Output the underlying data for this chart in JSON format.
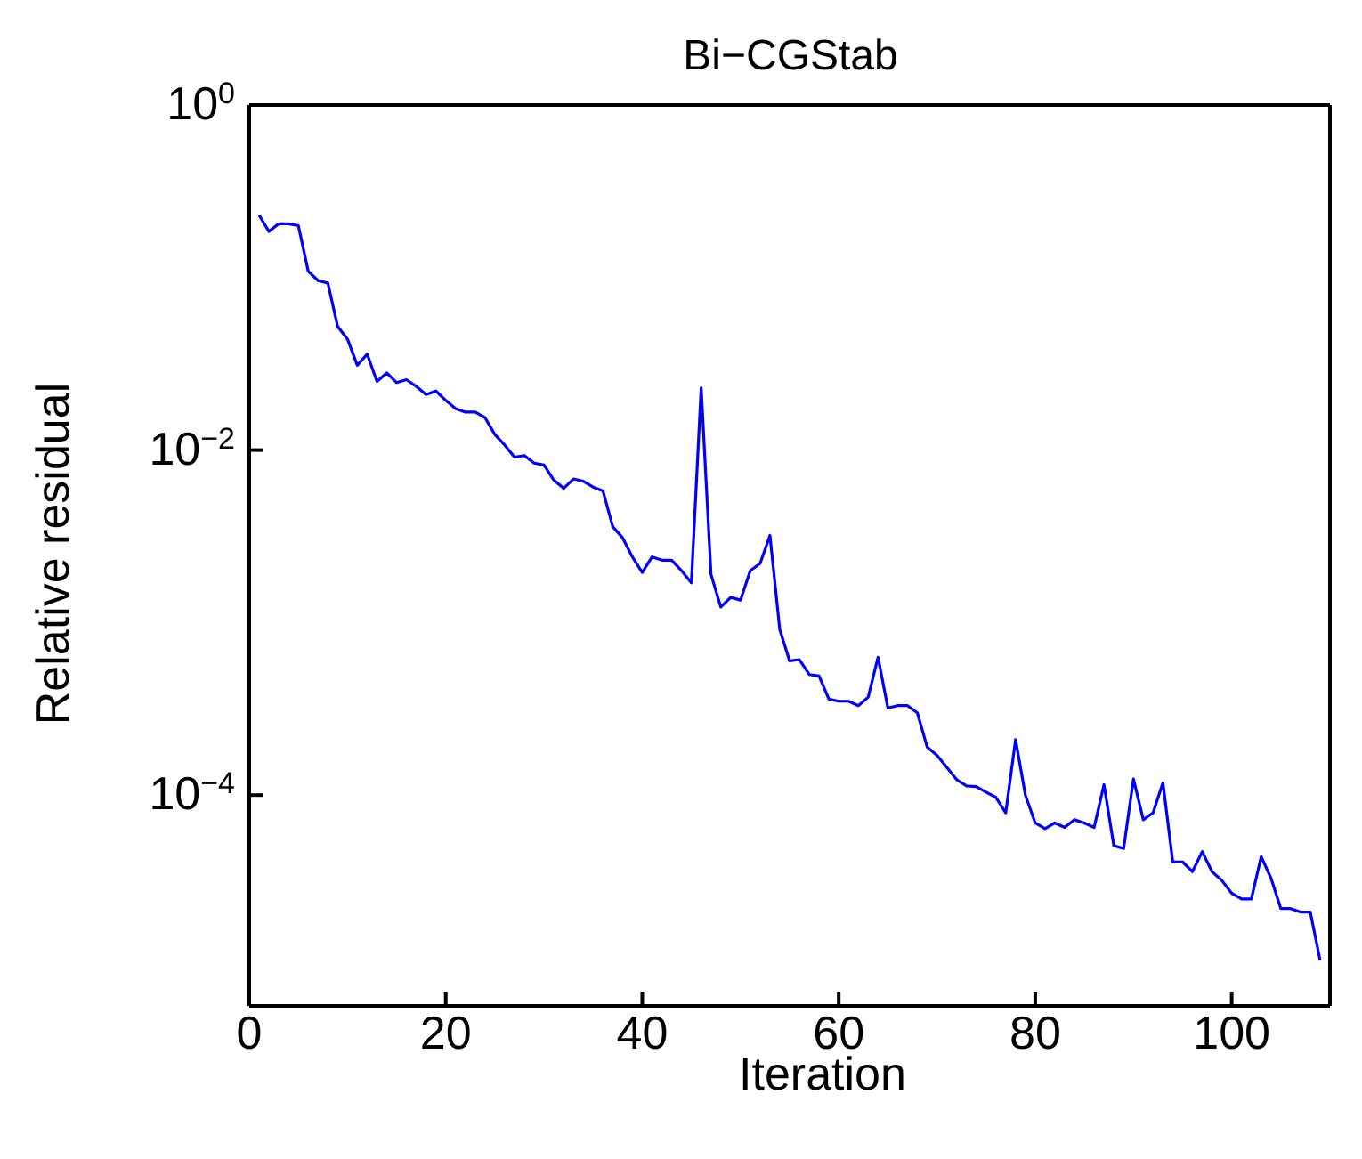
{
  "chart_data": {
    "type": "line",
    "title": "Bi−CGStab",
    "xlabel": "Iteration",
    "ylabel": "Relative residual",
    "x": [
      1,
      2,
      3,
      4,
      5,
      6,
      7,
      8,
      9,
      10,
      11,
      12,
      13,
      14,
      15,
      16,
      17,
      18,
      19,
      20,
      21,
      22,
      23,
      24,
      25,
      26,
      27,
      28,
      29,
      30,
      31,
      32,
      33,
      34,
      35,
      36,
      37,
      38,
      39,
      40,
      41,
      42,
      43,
      44,
      45,
      46,
      47,
      48,
      49,
      50,
      51,
      52,
      53,
      54,
      55,
      56,
      57,
      58,
      59,
      60,
      61,
      62,
      63,
      64,
      65,
      66,
      67,
      68,
      69,
      70,
      71,
      72,
      73,
      74,
      75,
      76,
      77,
      78,
      79,
      80,
      81,
      82,
      83,
      84,
      85,
      86,
      87,
      88,
      89,
      90,
      91,
      92,
      93,
      94,
      95,
      96,
      97,
      98,
      99,
      100,
      101,
      102,
      103,
      104,
      105,
      106,
      107,
      108,
      109
    ],
    "series": [
      {
        "color": "#0000ff",
        "values": [
          0.23,
          0.185,
          0.205,
          0.205,
          0.2,
          0.109,
          0.096,
          0.093,
          0.052,
          0.044,
          0.031,
          0.036,
          0.025,
          0.028,
          0.0246,
          0.0256,
          0.0234,
          0.021,
          0.022,
          0.0194,
          0.0174,
          0.0166,
          0.0166,
          0.0154,
          0.0123,
          0.0107,
          0.0091,
          0.0093,
          0.0084,
          0.0082,
          0.0067,
          0.006,
          0.0068,
          0.0066,
          0.0061,
          0.0058,
          0.0036,
          0.0031,
          0.0024,
          0.00195,
          0.0024,
          0.0023,
          0.0023,
          0.002,
          0.0017,
          0.023,
          0.0019,
          0.00123,
          0.0014,
          0.00135,
          0.002,
          0.0022,
          0.0032,
          0.00091,
          0.0006,
          0.00061,
          0.0005,
          0.00049,
          0.00036,
          0.00035,
          0.00035,
          0.00033,
          0.00037,
          0.00063,
          0.00032,
          0.00033,
          0.00033,
          0.0003,
          0.00019,
          0.00017,
          0.000145,
          0.000123,
          0.000113,
          0.000112,
          0.000104,
          9.7e-05,
          7.9e-05,
          0.00021,
          0.0001,
          6.9e-05,
          6.4e-05,
          6.9e-05,
          6.5e-05,
          7.2e-05,
          6.9e-05,
          6.5e-05,
          0.000115,
          5.1e-05,
          4.9e-05,
          0.000124,
          7.2e-05,
          7.9e-05,
          0.000118,
          4.1e-05,
          4.1e-05,
          3.6e-05,
          4.7e-05,
          3.6e-05,
          3.2e-05,
          2.7e-05,
          2.5e-05,
          2.5e-05,
          4.4e-05,
          3.3e-05,
          2.2e-05,
          2.2e-05,
          2.1e-05,
          2.1e-05,
          1.1e-05
        ]
      }
    ],
    "xlim": [
      0,
      110
    ],
    "xticks": [
      0,
      20,
      40,
      60,
      80,
      100
    ],
    "ylim": [
      6e-06,
      1
    ],
    "yticks": [
      {
        "value": 1,
        "label": "10$^{0}$"
      },
      {
        "value": 0.01,
        "label": "10$^{−2}$"
      },
      {
        "value": 0.0001,
        "label": "10$^{−4}$"
      }
    ],
    "log": "y",
    "grid": false,
    "marker": "none",
    "line_style": "solid"
  }
}
